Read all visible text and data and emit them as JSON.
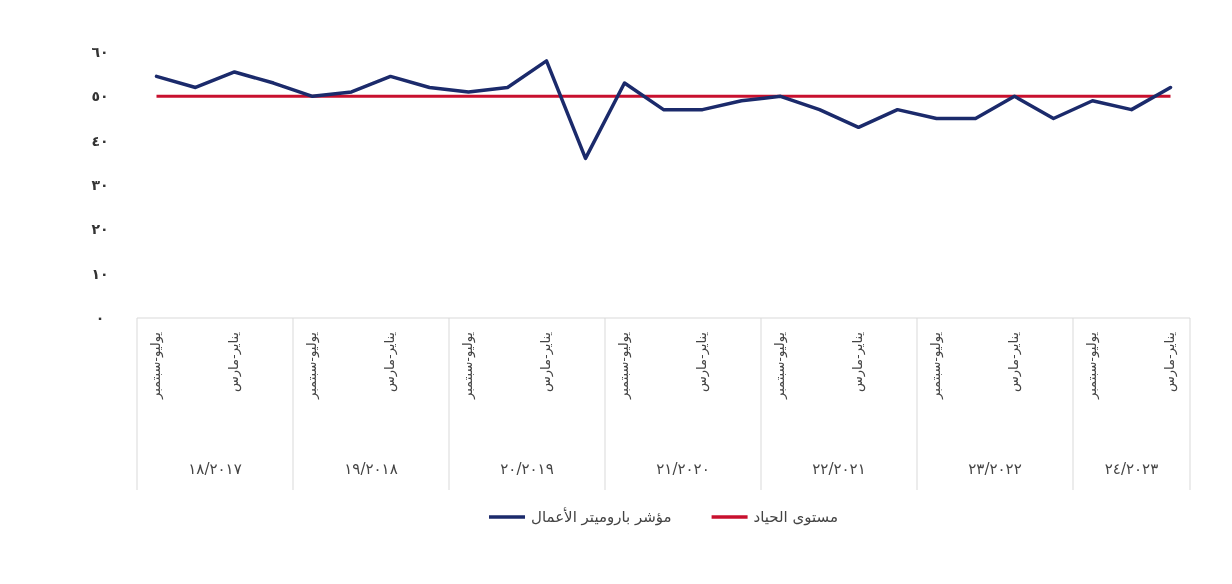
{
  "chart_data": {
    "type": "line",
    "categories": [
      "يوليو-سبتمبر",
      null,
      "يناير-مارس",
      null,
      "يوليو-سبتمبر",
      null,
      "يناير-مارس",
      null,
      "يوليو-سبتمبر",
      null,
      "يناير-مارس",
      null,
      "يوليو-سبتمبر",
      null,
      "يناير-مارس",
      null,
      "يوليو-سبتمبر",
      null,
      "يناير-مارس",
      null,
      "يوليو-سبتمبر",
      null,
      "يناير-مارس",
      null,
      "يوليو-سبتمبر",
      null,
      "يناير-مارس"
    ],
    "series": [
      {
        "name": "مؤشر باروميتر الأعمال",
        "color": "#1b2a6b",
        "values": [
          54.5,
          52,
          55.5,
          53,
          50,
          51,
          54.5,
          52,
          51,
          52,
          58,
          36,
          53,
          47,
          47,
          49,
          50,
          47,
          43,
          47,
          45,
          45,
          50,
          45,
          49,
          47,
          52
        ]
      }
    ],
    "ref_lines": [
      {
        "axis": "y",
        "value": 50,
        "label": "مستوى الحياد",
        "color": "#c8102e"
      }
    ],
    "ylim": [
      0,
      60
    ],
    "yticks": [
      {
        "value": 0,
        "label": "٠"
      },
      {
        "value": 10,
        "label": "١٠"
      },
      {
        "value": 20,
        "label": "٢٠"
      },
      {
        "value": 30,
        "label": "٣٠"
      },
      {
        "value": 40,
        "label": "٤٠"
      },
      {
        "value": 50,
        "label": "٥٠"
      },
      {
        "value": 60,
        "label": "٦٠"
      }
    ],
    "annotations": [
      "١٨/٢٠١٧",
      "١٩/٢٠١٨",
      "٢٠/٢٠١٩",
      "٢١/٢٠٢٠",
      "٢٢/٢٠٢١",
      "٢٣/٢٠٢٢",
      "٢٤/٢٠٢٣"
    ],
    "legend": "bottom"
  }
}
